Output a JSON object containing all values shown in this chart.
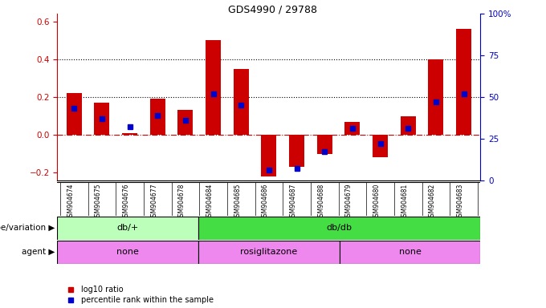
{
  "title": "GDS4990 / 29788",
  "samples": [
    "GSM904674",
    "GSM904675",
    "GSM904676",
    "GSM904677",
    "GSM904678",
    "GSM904684",
    "GSM904685",
    "GSM904686",
    "GSM904687",
    "GSM904688",
    "GSM904679",
    "GSM904680",
    "GSM904681",
    "GSM904682",
    "GSM904683"
  ],
  "log10_ratio": [
    0.22,
    0.17,
    0.01,
    0.19,
    0.13,
    0.5,
    0.35,
    -0.22,
    -0.17,
    -0.1,
    0.07,
    -0.12,
    0.1,
    0.4,
    0.56
  ],
  "percentile": [
    0.43,
    0.37,
    0.32,
    0.39,
    0.36,
    0.52,
    0.45,
    0.06,
    0.07,
    0.17,
    0.31,
    0.22,
    0.31,
    0.47,
    0.52
  ],
  "bar_color": "#cc0000",
  "dot_color": "#0000cc",
  "ylim_left": [
    -0.24,
    0.64
  ],
  "ylim_right": [
    0.0,
    1.0
  ],
  "yticks_left": [
    -0.2,
    0.0,
    0.2,
    0.4,
    0.6
  ],
  "yticks_right": [
    0.0,
    0.25,
    0.5,
    0.75,
    1.0
  ],
  "ytick_labels_right": [
    "0",
    "25",
    "50",
    "75",
    "100%"
  ],
  "hlines": [
    0.2,
    0.4
  ],
  "hline_color": "black",
  "zero_line_color": "#cc0000",
  "background_color": "#ffffff",
  "genotype_data": [
    {
      "label": "db/+",
      "start": 0,
      "end": 5,
      "color": "#bbffbb"
    },
    {
      "label": "db/db",
      "start": 5,
      "end": 15,
      "color": "#44dd44"
    }
  ],
  "agent_data": [
    {
      "label": "none",
      "start": 0,
      "end": 5,
      "color": "#ee88ee"
    },
    {
      "label": "rosiglitazone",
      "start": 5,
      "end": 10,
      "color": "#ee88ee"
    },
    {
      "label": "none",
      "start": 10,
      "end": 15,
      "color": "#ee88ee"
    }
  ],
  "legend_red": "log10 ratio",
  "legend_blue": "percentile rank within the sample",
  "label_bg": "#cccccc"
}
